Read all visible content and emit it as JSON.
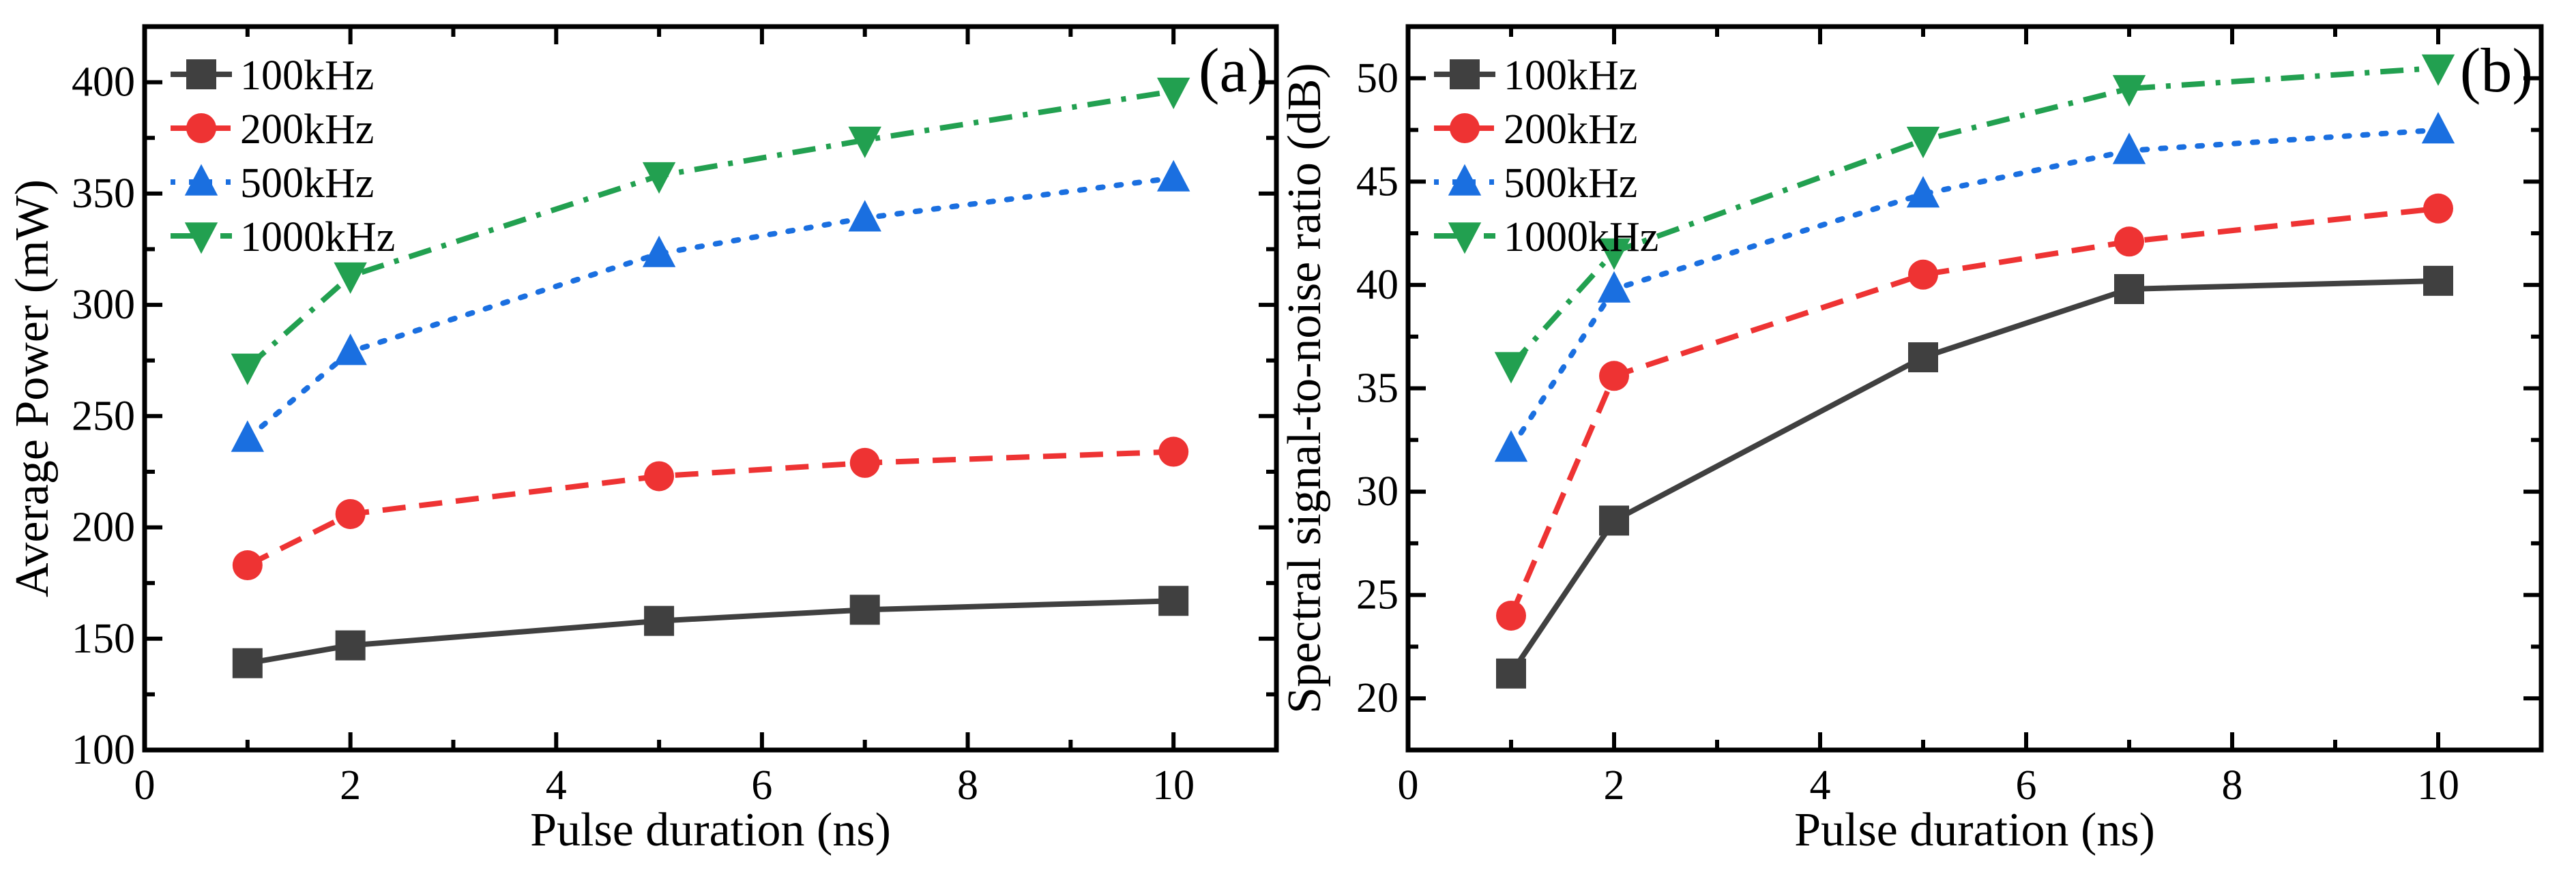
{
  "chart_data": [
    {
      "type": "line",
      "panel_label": "(a)",
      "title": "",
      "xlabel": "Pulse duration (ns)",
      "ylabel": "Average Power (mW)",
      "xlim": [
        0,
        11
      ],
      "ylim": [
        100,
        425
      ],
      "xticks": [
        0,
        2,
        4,
        6,
        8,
        10
      ],
      "yticks": [
        100,
        150,
        200,
        250,
        300,
        350,
        400
      ],
      "grid": false,
      "legend_position": "top-left",
      "x": [
        1,
        2,
        5,
        7,
        10
      ],
      "series": [
        {
          "name": "100kHz",
          "color": "#404040",
          "marker": "square",
          "dash": "solid",
          "values": [
            139,
            147,
            158,
            163,
            167
          ]
        },
        {
          "name": "200kHz",
          "color": "#ee3333",
          "marker": "circle",
          "dash": "dashed",
          "values": [
            183,
            206,
            223,
            229,
            234
          ]
        },
        {
          "name": "500kHz",
          "color": "#1a6fe0",
          "marker": "triangle-up",
          "dash": "dotted",
          "values": [
            240,
            279,
            323,
            339,
            357
          ]
        },
        {
          "name": "1000kHz",
          "color": "#22a050",
          "marker": "triangle-down",
          "dash": "dashdot",
          "values": [
            272,
            313,
            358,
            374,
            396
          ]
        }
      ]
    },
    {
      "type": "line",
      "panel_label": "(b)",
      "title": "",
      "xlabel": "Pulse duration (ns)",
      "ylabel": "Spectral signal-to-noise ratio (dB)",
      "xlim": [
        0,
        11
      ],
      "ylim": [
        17.5,
        52.5
      ],
      "xticks": [
        0,
        2,
        4,
        6,
        8,
        10
      ],
      "yticks": [
        20,
        25,
        30,
        35,
        40,
        45,
        50
      ],
      "grid": false,
      "legend_position": "top-left",
      "x": [
        1,
        2,
        5,
        7,
        10
      ],
      "series": [
        {
          "name": "100kHz",
          "color": "#404040",
          "marker": "square",
          "dash": "solid",
          "values": [
            21.2,
            28.6,
            36.5,
            39.8,
            40.2
          ]
        },
        {
          "name": "200kHz",
          "color": "#ee3333",
          "marker": "circle",
          "dash": "dashed",
          "values": [
            24.0,
            35.6,
            40.5,
            42.1,
            43.7
          ]
        },
        {
          "name": "500kHz",
          "color": "#1a6fe0",
          "marker": "triangle-up",
          "dash": "dotted",
          "values": [
            32.1,
            39.8,
            44.4,
            46.5,
            47.5
          ]
        },
        {
          "name": "1000kHz",
          "color": "#22a050",
          "marker": "triangle-down",
          "dash": "dashdot",
          "values": [
            36.1,
            41.6,
            47.0,
            49.5,
            50.5
          ]
        }
      ]
    }
  ]
}
